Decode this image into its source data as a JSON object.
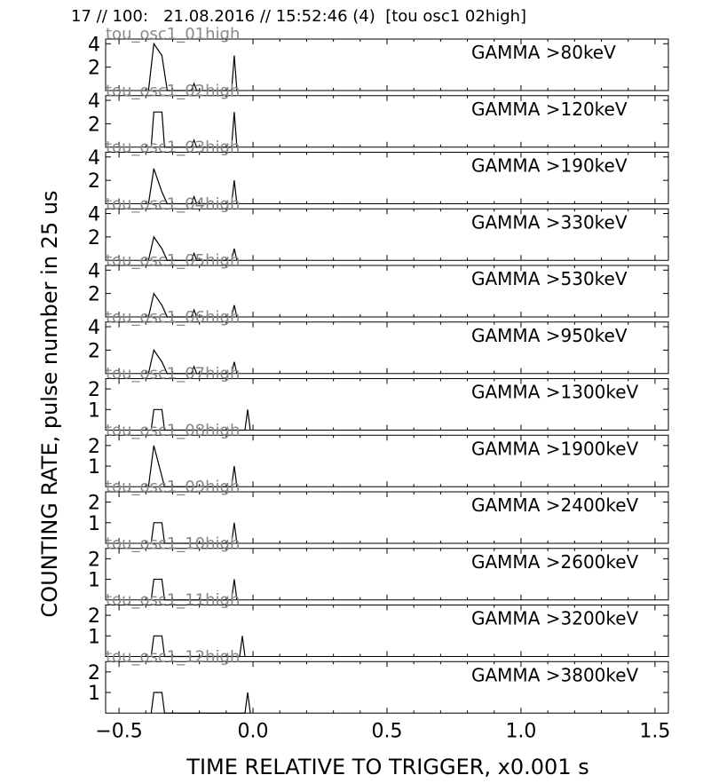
{
  "header": "17 // 100:   21.08.2016 // 15:52:46 (4)  [tou osc1 02high]",
  "xlabel": "TIME RELATIVE TO TRIGGER,   x0.001 s",
  "ylabel": "COUNTING RATE,    pulse number in 25 us",
  "chart_data": {
    "type": "line",
    "x_ticks": [
      -0.5,
      0.0,
      0.5,
      1.0,
      1.5
    ],
    "x_tick_labels": [
      "−0.5",
      "0.0",
      "0.5",
      "1.0",
      "1.5"
    ],
    "xlim": [
      -0.55,
      1.55
    ],
    "panels": [
      {
        "label": "GAMMA >80keV",
        "channel": "tou_osc1_01high",
        "ylim": [
          0,
          4.4
        ],
        "yticks": [
          2,
          4
        ],
        "x": [
          -0.39,
          -0.37,
          -0.34,
          -0.32,
          -0.23,
          -0.22,
          -0.21,
          -0.08,
          -0.07,
          -0.06
        ],
        "y": [
          0,
          4,
          3,
          0,
          0,
          0.6,
          0,
          0,
          3,
          0
        ]
      },
      {
        "label": "GAMMA >120keV",
        "channel": "tou_osc1_02high",
        "ylim": [
          0,
          4.4
        ],
        "yticks": [
          2,
          4
        ],
        "x": [
          -0.38,
          -0.37,
          -0.34,
          -0.33,
          -0.23,
          -0.22,
          -0.21,
          -0.08,
          -0.07,
          -0.06
        ],
        "y": [
          0,
          3,
          3,
          0,
          0,
          0.6,
          0,
          0,
          3,
          0
        ]
      },
      {
        "label": "GAMMA >190keV",
        "channel": "tou_osc1_03high",
        "ylim": [
          0,
          4.4
        ],
        "yticks": [
          2,
          4
        ],
        "x": [
          -0.39,
          -0.37,
          -0.34,
          -0.32,
          -0.23,
          -0.22,
          -0.21,
          -0.08,
          -0.07,
          -0.06
        ],
        "y": [
          0,
          3,
          1,
          0,
          0,
          0.6,
          0,
          0,
          2,
          0
        ]
      },
      {
        "label": "GAMMA >330keV",
        "channel": "tou_osc1_04high",
        "ylim": [
          0,
          4.4
        ],
        "yticks": [
          2,
          4
        ],
        "x": [
          -0.39,
          -0.37,
          -0.34,
          -0.32,
          -0.23,
          -0.22,
          -0.21,
          -0.08,
          -0.07,
          -0.06
        ],
        "y": [
          0,
          2,
          1,
          0,
          0,
          0.6,
          0,
          0,
          1,
          0
        ]
      },
      {
        "label": "GAMMA >530keV",
        "channel": "tou_osc1_05high",
        "ylim": [
          0,
          4.4
        ],
        "yticks": [
          2,
          4
        ],
        "x": [
          -0.39,
          -0.37,
          -0.34,
          -0.32,
          -0.23,
          -0.22,
          -0.21,
          -0.08,
          -0.07,
          -0.06
        ],
        "y": [
          0,
          2,
          1,
          0,
          0,
          0.6,
          0,
          0,
          1,
          0
        ]
      },
      {
        "label": "GAMMA >950keV",
        "channel": "tou_osc1_06high",
        "ylim": [
          0,
          4.4
        ],
        "yticks": [
          2,
          4
        ],
        "x": [
          -0.39,
          -0.37,
          -0.34,
          -0.32,
          -0.23,
          -0.22,
          -0.21,
          -0.08,
          -0.07,
          -0.06
        ],
        "y": [
          0,
          2,
          1,
          0,
          0,
          0.6,
          0,
          0,
          1,
          0
        ]
      },
      {
        "label": "GAMMA >1300keV",
        "channel": "tou_osc1_07high",
        "ylim": [
          0,
          2.5
        ],
        "yticks": [
          1,
          2
        ],
        "x": [
          -0.38,
          -0.37,
          -0.34,
          -0.33,
          -0.03,
          -0.02,
          -0.01
        ],
        "y": [
          0,
          1,
          1,
          0,
          0,
          1,
          0
        ]
      },
      {
        "label": "GAMMA >1900keV",
        "channel": "tou_osc1_08high",
        "ylim": [
          0,
          2.5
        ],
        "yticks": [
          1,
          2
        ],
        "x": [
          -0.39,
          -0.37,
          -0.33,
          -0.08,
          -0.07,
          -0.06
        ],
        "y": [
          0,
          2,
          0,
          0,
          1,
          0
        ]
      },
      {
        "label": "GAMMA >2400keV",
        "channel": "tou_osc1_09high",
        "ylim": [
          0,
          2.5
        ],
        "yticks": [
          1,
          2
        ],
        "x": [
          -0.38,
          -0.37,
          -0.34,
          -0.33,
          -0.08,
          -0.07,
          -0.06
        ],
        "y": [
          0,
          1,
          1,
          0,
          0,
          1,
          0
        ]
      },
      {
        "label": "GAMMA >2600keV",
        "channel": "tou_osc1_10high",
        "ylim": [
          0,
          2.5
        ],
        "yticks": [
          1,
          2
        ],
        "x": [
          -0.38,
          -0.37,
          -0.34,
          -0.33,
          -0.08,
          -0.07,
          -0.06
        ],
        "y": [
          0,
          1,
          1,
          0,
          0,
          1,
          0
        ]
      },
      {
        "label": "GAMMA >3200keV",
        "channel": "tou_osc1_11high",
        "ylim": [
          0,
          2.5
        ],
        "yticks": [
          1,
          2
        ],
        "x": [
          -0.38,
          -0.37,
          -0.34,
          -0.33,
          -0.05,
          -0.04,
          -0.03
        ],
        "y": [
          0,
          1,
          1,
          0,
          0,
          1,
          0
        ]
      },
      {
        "label": "GAMMA >3800keV",
        "channel": "tou_osc1_12high",
        "ylim": [
          0,
          2.5
        ],
        "yticks": [
          1,
          2
        ],
        "x": [
          -0.38,
          -0.37,
          -0.34,
          -0.33,
          -0.03,
          -0.02,
          -0.01
        ],
        "y": [
          0,
          1,
          1,
          0,
          0,
          1,
          0
        ]
      }
    ]
  }
}
